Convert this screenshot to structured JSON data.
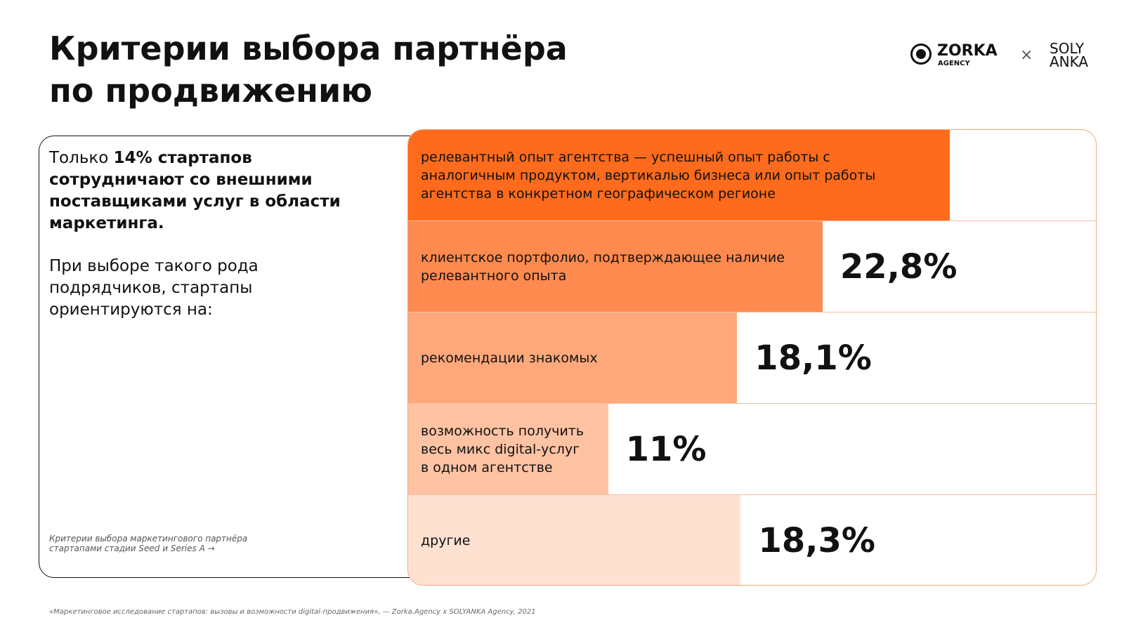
{
  "header": {
    "title_line1": "Критерии выбора партнёра",
    "title_line2": "по продвижению",
    "logo_left": "ZORKA",
    "logo_left_sub": "AGENCY",
    "logo_sep": "×",
    "logo_right_line1": "SOLY",
    "logo_right_line2": "ANKA"
  },
  "left": {
    "text_plain": "Только ",
    "text_bold": "14% стартапов сотрудничают со внешними поставщиками услуг в области маркетинга.",
    "text_second": "При выборе такого рода подрядчиков, стартапы ориентируются на:",
    "caption": "Критерии выбора маркетингового партнёра стартапами стадии Seed и Series A →"
  },
  "footer": {
    "source": "«Маркетинговое исследование стартапов: вызовы и возможности digital-продвижения», — Zorka.Agency x SOLYANKA Agency, 2021"
  },
  "chart_data": {
    "type": "bar",
    "orientation": "horizontal",
    "categories": [
      "релевантный опыт агентства — успешный опыт работы с аналогичным продуктом, вертикалью бизнеса или опыт работы агентства в конкретном географическом регионе",
      "клиентское портфолио, подтверждающее наличие релевантного опыта",
      "рекомендации знакомых",
      "возможность получить весь микс digital-услуг в одном агентстве",
      "другие"
    ],
    "values": [
      29.8,
      22.8,
      18.1,
      11,
      18.3
    ],
    "value_labels": [
      null,
      "22,8%",
      "18,1%",
      "11%",
      "18,3%"
    ],
    "colors": [
      "#ff6b1c",
      "#ff8a4f",
      "#ffa87b",
      "#ffc3a3",
      "#ffe1d2"
    ],
    "xlim": [
      0,
      37.8
    ]
  }
}
